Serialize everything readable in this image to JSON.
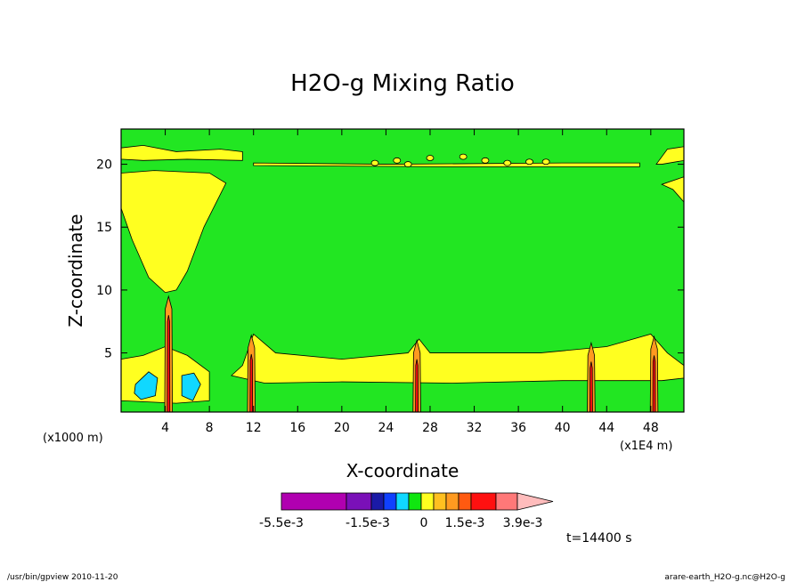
{
  "chart_data": {
    "type": "heatmap",
    "title": "H2O-g Mixing Ratio",
    "xlabel": "X-coordinate",
    "ylabel": "Z-coordinate",
    "x_unit_left": "(x1000 m)",
    "x_unit_right": "(x1E4 m)",
    "xlim": [
      0,
      51
    ],
    "ylim": [
      0.3,
      22.8
    ],
    "x_ticks": [
      4,
      8,
      12,
      16,
      20,
      24,
      28,
      32,
      36,
      40,
      44,
      48
    ],
    "y_ticks": [
      5,
      10,
      15,
      20
    ],
    "x_tick_labels": [
      "4",
      "8",
      "12",
      "16",
      "20",
      "24",
      "28",
      "32",
      "36",
      "40",
      "44",
      "48"
    ],
    "y_tick_labels": [
      "5",
      "10",
      "15",
      "20"
    ],
    "colorbar": {
      "colors": [
        "#b000b0",
        "#7a10b8",
        "#1a1aa6",
        "#1040ff",
        "#10d8ff",
        "#10e610",
        "#ffff20",
        "#ffc020",
        "#ff9a20",
        "#ff5a10",
        "#ff1010",
        "#ff7878",
        "#ffbcbc"
      ],
      "labels": [
        "-5.5e-3",
        "-1.5e-3",
        "0",
        "1.5e-3",
        "3.9e-3"
      ]
    },
    "time_label": "t=14400 s"
  },
  "footer": {
    "left": "/usr/bin/gpview  2010-11-20",
    "right": "arare-earth_H2O-g.nc@H2O-g"
  }
}
